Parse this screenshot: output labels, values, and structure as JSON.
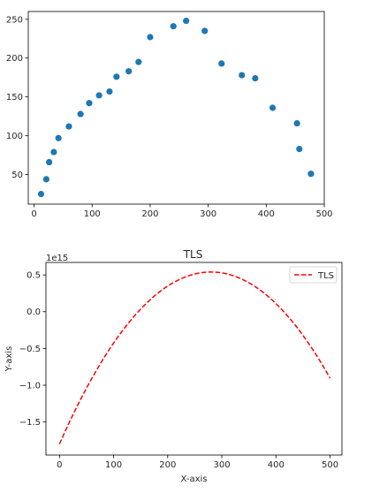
{
  "chart_data": [
    {
      "type": "scatter",
      "title": "",
      "xlabel": "",
      "ylabel": "",
      "xlim": [
        -10,
        500
      ],
      "ylim": [
        12,
        260
      ],
      "xticks": [
        0,
        100,
        200,
        300,
        400,
        500
      ],
      "yticks": [
        50,
        100,
        150,
        200,
        250
      ],
      "grid": false,
      "color": "#1f77b4",
      "series": [
        {
          "x": [
            12,
            21,
            26,
            34,
            42,
            60,
            80,
            95,
            112,
            130,
            142,
            163,
            180,
            200,
            240,
            262,
            294,
            323,
            358,
            381,
            411,
            453,
            457,
            477
          ],
          "y": [
            25,
            44,
            66,
            79,
            97,
            112,
            128,
            142,
            152,
            157,
            176,
            183,
            195,
            227,
            241,
            248,
            235,
            193,
            178,
            174,
            136,
            116,
            83,
            51
          ]
        }
      ]
    },
    {
      "type": "line",
      "title": "TLS",
      "xlabel": "X-axis",
      "ylabel": "Y-axis",
      "y_scale_label": "1e15",
      "xlim": [
        -25,
        522
      ],
      "ylim": [
        -1.95,
        0.67
      ],
      "xticks": [
        0,
        100,
        200,
        300,
        400,
        500
      ],
      "yticks": [
        -1.5,
        -1.0,
        -0.5,
        0.0,
        0.5
      ],
      "ytick_labels": [
        "−1.5",
        "−1.0",
        "−0.5",
        "0.0",
        "0.5"
      ],
      "grid": false,
      "legend_position": "upper right",
      "series": [
        {
          "name": "TLS",
          "color": "#ff0000",
          "style": "dashed",
          "quadratic": {
            "x_vertex": 280,
            "y_vertex": 0.54,
            "y_at_0": -1.8
          },
          "x_range": [
            0,
            500
          ]
        }
      ]
    }
  ]
}
